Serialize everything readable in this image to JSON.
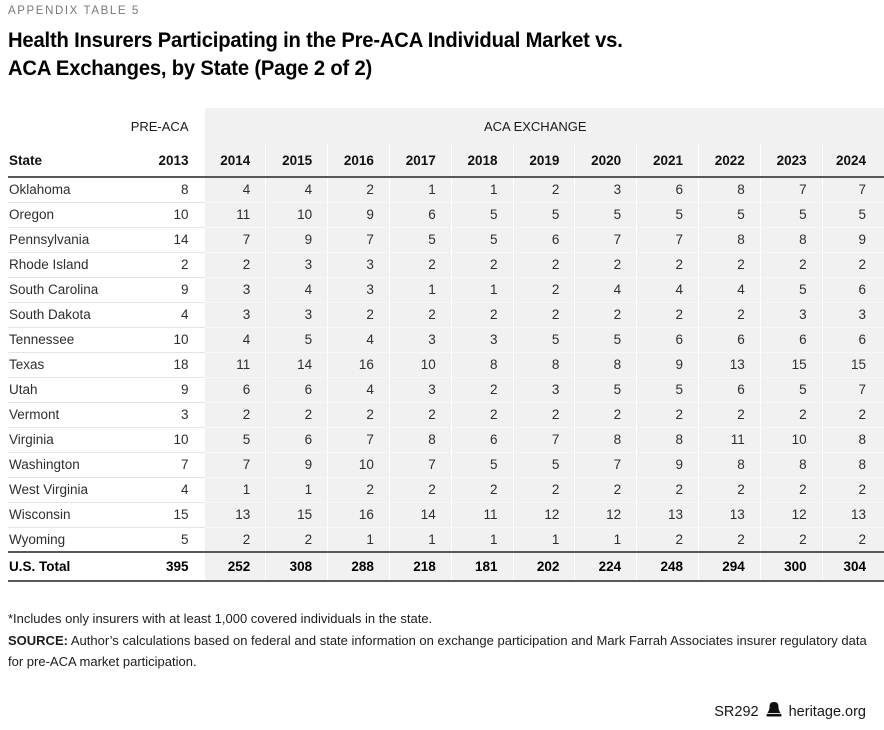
{
  "page": {
    "eyebrow": "APPENDIX TABLE 5",
    "title_line1": "Health Insurers Participating in the Pre-ACA Individual Market vs.",
    "title_line2": "ACA Exchanges, by State (Page 2 of 2)"
  },
  "table": {
    "group_headers": {
      "pre_aca": "PRE-ACA",
      "aca_exchange": "ACA EXCHANGE"
    },
    "state_header": "State",
    "pre_aca_year": "2013",
    "exchange_years": [
      "2014",
      "2015",
      "2016",
      "2017",
      "2018",
      "2019",
      "2020",
      "2021",
      "2022",
      "2023",
      "2024"
    ],
    "rows": [
      {
        "state": "Oklahoma",
        "pre_aca": "8",
        "values": [
          "4",
          "4",
          "2",
          "1",
          "1",
          "2",
          "3",
          "6",
          "8",
          "7",
          "7"
        ]
      },
      {
        "state": "Oregon",
        "pre_aca": "10",
        "values": [
          "11",
          "10",
          "9",
          "6",
          "5",
          "5",
          "5",
          "5",
          "5",
          "5",
          "5"
        ]
      },
      {
        "state": "Pennsylvania",
        "pre_aca": "14",
        "values": [
          "7",
          "9",
          "7",
          "5",
          "5",
          "6",
          "7",
          "7",
          "8",
          "8",
          "9"
        ]
      },
      {
        "state": "Rhode Island",
        "pre_aca": "2",
        "values": [
          "2",
          "3",
          "3",
          "2",
          "2",
          "2",
          "2",
          "2",
          "2",
          "2",
          "2"
        ]
      },
      {
        "state": "South Carolina",
        "pre_aca": "9",
        "values": [
          "3",
          "4",
          "3",
          "1",
          "1",
          "2",
          "4",
          "4",
          "4",
          "5",
          "6"
        ]
      },
      {
        "state": "South Dakota",
        "pre_aca": "4",
        "values": [
          "3",
          "3",
          "2",
          "2",
          "2",
          "2",
          "2",
          "2",
          "2",
          "3",
          "3"
        ]
      },
      {
        "state": "Tennessee",
        "pre_aca": "10",
        "values": [
          "4",
          "5",
          "4",
          "3",
          "3",
          "5",
          "5",
          "6",
          "6",
          "6",
          "6"
        ]
      },
      {
        "state": "Texas",
        "pre_aca": "18",
        "values": [
          "11",
          "14",
          "16",
          "10",
          "8",
          "8",
          "8",
          "9",
          "13",
          "15",
          "15"
        ]
      },
      {
        "state": "Utah",
        "pre_aca": "9",
        "values": [
          "6",
          "6",
          "4",
          "3",
          "2",
          "3",
          "5",
          "5",
          "6",
          "5",
          "7"
        ]
      },
      {
        "state": "Vermont",
        "pre_aca": "3",
        "values": [
          "2",
          "2",
          "2",
          "2",
          "2",
          "2",
          "2",
          "2",
          "2",
          "2",
          "2"
        ]
      },
      {
        "state": "Virginia",
        "pre_aca": "10",
        "values": [
          "5",
          "6",
          "7",
          "8",
          "6",
          "7",
          "8",
          "8",
          "11",
          "10",
          "8"
        ]
      },
      {
        "state": "Washington",
        "pre_aca": "7",
        "values": [
          "7",
          "9",
          "10",
          "7",
          "5",
          "5",
          "7",
          "9",
          "8",
          "8",
          "8"
        ]
      },
      {
        "state": "West Virginia",
        "pre_aca": "4",
        "values": [
          "1",
          "1",
          "2",
          "2",
          "2",
          "2",
          "2",
          "2",
          "2",
          "2",
          "2"
        ]
      },
      {
        "state": "Wisconsin",
        "pre_aca": "15",
        "values": [
          "13",
          "15",
          "16",
          "14",
          "11",
          "12",
          "12",
          "13",
          "13",
          "12",
          "13"
        ]
      },
      {
        "state": "Wyoming",
        "pre_aca": "5",
        "values": [
          "2",
          "2",
          "1",
          "1",
          "1",
          "1",
          "1",
          "2",
          "2",
          "2",
          "2"
        ]
      }
    ],
    "total_row": {
      "state": "U.S. Total",
      "pre_aca": "395",
      "values": [
        "252",
        "308",
        "288",
        "218",
        "181",
        "202",
        "224",
        "248",
        "294",
        "300",
        "304"
      ]
    }
  },
  "footnotes": {
    "note": "*Includes only insurers with at least 1,000 covered individuals in the state.",
    "source_label": "SOURCE:",
    "source_text": " Author’s calculations based on federal and state information on exchange participation and Mark Farrah Associates insurer regulatory data for pre-ACA market participation."
  },
  "footer": {
    "report_id": "SR292",
    "site": "heritage.org"
  },
  "colors": {
    "shaded_column_bg": "#f1f1f2",
    "dark_rule": "#57585a",
    "row_divider": "#e4e4e6",
    "eyebrow_text": "#77787b"
  }
}
